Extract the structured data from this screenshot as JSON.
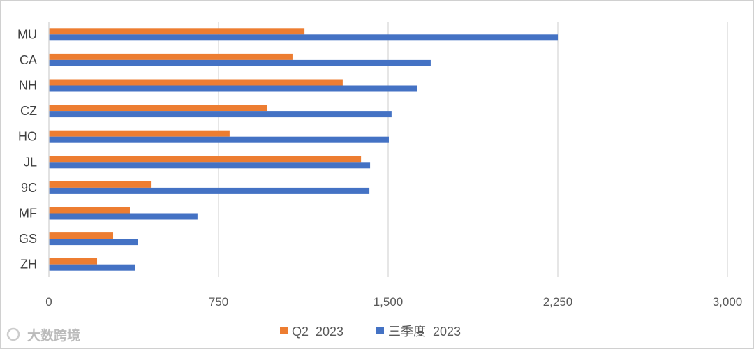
{
  "chart_data": {
    "type": "bar",
    "orientation": "horizontal",
    "categories": [
      "MU",
      "CA",
      "NH",
      "CZ",
      "HO",
      "JL",
      "9C",
      "MF",
      "GS",
      "ZH"
    ],
    "series": [
      {
        "name": "Q2  2023",
        "color": "#ED7D31",
        "values": [
          1130,
          1077,
          1299,
          963,
          799,
          1380,
          454,
          358,
          284,
          213
        ]
      },
      {
        "name": "三季度  2023",
        "color": "#4472C4",
        "values": [
          2250,
          1688,
          1627,
          1515,
          1503,
          1420,
          1417,
          657,
          392,
          380
        ]
      }
    ],
    "xlim": [
      0,
      3000
    ],
    "xticks": [
      0,
      750,
      1500,
      2250,
      3000
    ],
    "xtick_labels": [
      "0",
      "750",
      "1,500",
      "2,250",
      "3,000"
    ],
    "grid": true,
    "legend_position": "bottom",
    "title": "",
    "xlabel": "",
    "ylabel": ""
  },
  "watermark": "大数跨境"
}
